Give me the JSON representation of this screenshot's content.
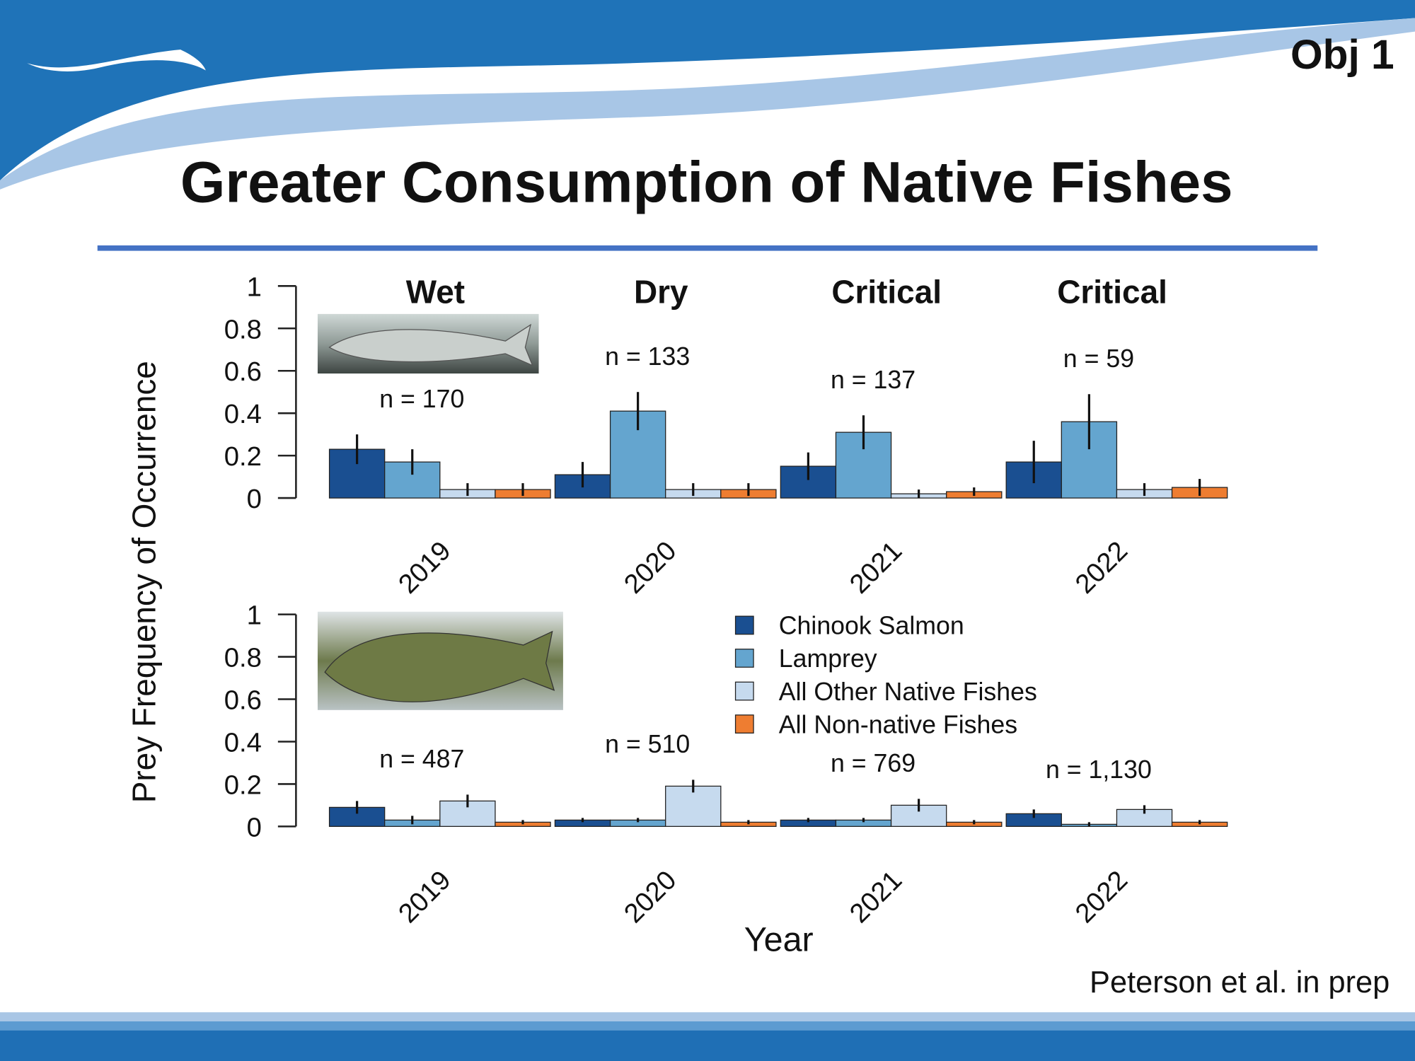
{
  "slide": {
    "tag": "Obj 1",
    "title": "Greater Consumption of Native Fishes",
    "citation": "Peterson et al. in prep"
  },
  "figure": {
    "ylabel": "Prey Frequency of Occurrence",
    "xlabel": "Year"
  },
  "chart_data": [
    {
      "type": "bar",
      "categories": [
        "2019",
        "2020",
        "2021",
        "2022"
      ],
      "group_labels": [
        {
          "text": "Wet",
          "color": "#1f6fb5"
        },
        {
          "text": "Dry",
          "color": "#f2c94c"
        },
        {
          "text": "Critical",
          "color": "#c0262d"
        },
        {
          "text": "Critical",
          "color": "#c0262d"
        }
      ],
      "sample_sizes": [
        "n = 170",
        "n = 133",
        "n = 137",
        "n = 59"
      ],
      "ylim": [
        0,
        1
      ],
      "yticks": [
        0,
        0.2,
        0.4,
        0.6,
        0.8,
        1
      ],
      "series": [
        {
          "color": "#1a4f91",
          "values": [
            0.23,
            0.11,
            0.15,
            0.17
          ],
          "errors": [
            0.07,
            0.06,
            0.065,
            0.1
          ]
        },
        {
          "color": "#64a5cf",
          "values": [
            0.17,
            0.41,
            0.31,
            0.36
          ],
          "errors": [
            0.06,
            0.09,
            0.08,
            0.13
          ]
        },
        {
          "color": "#c6daee",
          "values": [
            0.04,
            0.04,
            0.02,
            0.04
          ],
          "errors": [
            0.03,
            0.03,
            0.02,
            0.03
          ]
        },
        {
          "color": "#ee7d31",
          "values": [
            0.04,
            0.04,
            0.03,
            0.05
          ],
          "errors": [
            0.03,
            0.03,
            0.02,
            0.04
          ]
        }
      ]
    },
    {
      "type": "bar",
      "categories": [
        "2019",
        "2020",
        "2021",
        "2022"
      ],
      "sample_sizes": [
        "n = 487",
        "n = 510",
        "n = 769",
        "n = 1,130"
      ],
      "ylim": [
        0,
        1
      ],
      "yticks": [
        0,
        0.2,
        0.4,
        0.6,
        0.8,
        1
      ],
      "legend": true,
      "series": [
        {
          "name": "Chinook Salmon",
          "color": "#1a4f91",
          "values": [
            0.09,
            0.03,
            0.03,
            0.06
          ],
          "errors": [
            0.03,
            0.01,
            0.01,
            0.02
          ]
        },
        {
          "name": "Lamprey",
          "color": "#64a5cf",
          "values": [
            0.03,
            0.03,
            0.03,
            0.01
          ],
          "errors": [
            0.02,
            0.01,
            0.01,
            0.01
          ]
        },
        {
          "name": "All Other Native Fishes",
          "color": "#c6daee",
          "values": [
            0.12,
            0.19,
            0.1,
            0.08
          ],
          "errors": [
            0.03,
            0.03,
            0.03,
            0.02
          ]
        },
        {
          "name": "All Non-native Fishes",
          "color": "#ee7d31",
          "values": [
            0.02,
            0.02,
            0.02,
            0.02
          ],
          "errors": [
            0.01,
            0.01,
            0.01,
            0.01
          ]
        }
      ]
    }
  ]
}
